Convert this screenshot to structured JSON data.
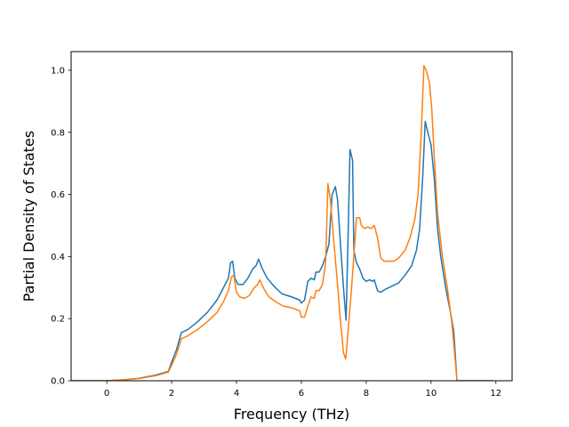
{
  "chart_data": {
    "type": "line",
    "title": "",
    "xlabel": "Frequency (THz)",
    "ylabel": "Partial Density of States",
    "xlim": [
      -1.1,
      12.5
    ],
    "ylim": [
      0.0,
      1.06
    ],
    "xticks": [
      0,
      2,
      4,
      6,
      8,
      10,
      12
    ],
    "xtick_labels": [
      "0",
      "2",
      "4",
      "6",
      "8",
      "10",
      "12"
    ],
    "yticks": [
      0.0,
      0.2,
      0.4,
      0.6,
      0.8,
      1.0
    ],
    "ytick_labels": [
      "0.0",
      "0.2",
      "0.4",
      "0.6",
      "0.8",
      "1.0"
    ],
    "grid": false,
    "legend": "none",
    "series": [
      {
        "color": "#1f77b4",
        "points": [
          [
            -1.1,
            0.0
          ],
          [
            0.0,
            0.0
          ],
          [
            0.5,
            0.003
          ],
          [
            1.0,
            0.008
          ],
          [
            1.5,
            0.018
          ],
          [
            1.9,
            0.03
          ],
          [
            2.0,
            0.06
          ],
          [
            2.15,
            0.1
          ],
          [
            2.3,
            0.155
          ],
          [
            2.5,
            0.165
          ],
          [
            2.8,
            0.19
          ],
          [
            3.1,
            0.22
          ],
          [
            3.4,
            0.26
          ],
          [
            3.6,
            0.3
          ],
          [
            3.75,
            0.33
          ],
          [
            3.82,
            0.38
          ],
          [
            3.88,
            0.385
          ],
          [
            3.95,
            0.33
          ],
          [
            4.05,
            0.31
          ],
          [
            4.2,
            0.31
          ],
          [
            4.35,
            0.33
          ],
          [
            4.5,
            0.36
          ],
          [
            4.6,
            0.37
          ],
          [
            4.68,
            0.392
          ],
          [
            4.8,
            0.36
          ],
          [
            4.95,
            0.33
          ],
          [
            5.15,
            0.305
          ],
          [
            5.4,
            0.28
          ],
          [
            5.7,
            0.27
          ],
          [
            5.95,
            0.26
          ],
          [
            6.0,
            0.25
          ],
          [
            6.1,
            0.26
          ],
          [
            6.2,
            0.32
          ],
          [
            6.3,
            0.33
          ],
          [
            6.4,
            0.325
          ],
          [
            6.45,
            0.35
          ],
          [
            6.55,
            0.35
          ],
          [
            6.65,
            0.37
          ],
          [
            6.75,
            0.4
          ],
          [
            6.85,
            0.44
          ],
          [
            6.95,
            0.6
          ],
          [
            7.05,
            0.625
          ],
          [
            7.12,
            0.58
          ],
          [
            7.2,
            0.45
          ],
          [
            7.3,
            0.3
          ],
          [
            7.38,
            0.195
          ],
          [
            7.45,
            0.5
          ],
          [
            7.5,
            0.745
          ],
          [
            7.58,
            0.71
          ],
          [
            7.62,
            0.42
          ],
          [
            7.7,
            0.38
          ],
          [
            7.8,
            0.36
          ],
          [
            7.9,
            0.33
          ],
          [
            8.0,
            0.32
          ],
          [
            8.1,
            0.325
          ],
          [
            8.2,
            0.32
          ],
          [
            8.25,
            0.325
          ],
          [
            8.35,
            0.29
          ],
          [
            8.45,
            0.285
          ],
          [
            8.6,
            0.295
          ],
          [
            8.8,
            0.305
          ],
          [
            9.0,
            0.315
          ],
          [
            9.2,
            0.34
          ],
          [
            9.4,
            0.37
          ],
          [
            9.55,
            0.42
          ],
          [
            9.65,
            0.49
          ],
          [
            9.75,
            0.67
          ],
          [
            9.82,
            0.835
          ],
          [
            9.9,
            0.8
          ],
          [
            10.0,
            0.76
          ],
          [
            10.1,
            0.65
          ],
          [
            10.2,
            0.49
          ],
          [
            10.3,
            0.4
          ],
          [
            10.45,
            0.3
          ],
          [
            10.6,
            0.22
          ],
          [
            10.7,
            0.16
          ],
          [
            10.8,
            0.0
          ],
          [
            11.9,
            0.0
          ]
        ]
      },
      {
        "color": "#ff7f0e",
        "points": [
          [
            -1.1,
            0.0
          ],
          [
            0.0,
            0.0
          ],
          [
            0.5,
            0.003
          ],
          [
            1.0,
            0.007
          ],
          [
            1.5,
            0.016
          ],
          [
            1.9,
            0.028
          ],
          [
            2.0,
            0.05
          ],
          [
            2.15,
            0.085
          ],
          [
            2.3,
            0.135
          ],
          [
            2.5,
            0.145
          ],
          [
            2.8,
            0.165
          ],
          [
            3.1,
            0.19
          ],
          [
            3.4,
            0.22
          ],
          [
            3.6,
            0.255
          ],
          [
            3.75,
            0.29
          ],
          [
            3.85,
            0.335
          ],
          [
            3.92,
            0.34
          ],
          [
            4.0,
            0.285
          ],
          [
            4.1,
            0.27
          ],
          [
            4.25,
            0.265
          ],
          [
            4.4,
            0.275
          ],
          [
            4.55,
            0.3
          ],
          [
            4.65,
            0.31
          ],
          [
            4.72,
            0.325
          ],
          [
            4.85,
            0.295
          ],
          [
            5.0,
            0.27
          ],
          [
            5.2,
            0.255
          ],
          [
            5.45,
            0.24
          ],
          [
            5.7,
            0.235
          ],
          [
            5.95,
            0.225
          ],
          [
            6.0,
            0.205
          ],
          [
            6.1,
            0.205
          ],
          [
            6.2,
            0.24
          ],
          [
            6.3,
            0.27
          ],
          [
            6.4,
            0.265
          ],
          [
            6.45,
            0.29
          ],
          [
            6.55,
            0.29
          ],
          [
            6.65,
            0.31
          ],
          [
            6.75,
            0.38
          ],
          [
            6.82,
            0.635
          ],
          [
            6.9,
            0.58
          ],
          [
            7.0,
            0.45
          ],
          [
            7.1,
            0.33
          ],
          [
            7.2,
            0.2
          ],
          [
            7.3,
            0.09
          ],
          [
            7.37,
            0.07
          ],
          [
            7.45,
            0.17
          ],
          [
            7.55,
            0.3
          ],
          [
            7.65,
            0.45
          ],
          [
            7.7,
            0.525
          ],
          [
            7.8,
            0.525
          ],
          [
            7.85,
            0.5
          ],
          [
            7.95,
            0.49
          ],
          [
            8.05,
            0.495
          ],
          [
            8.15,
            0.49
          ],
          [
            8.25,
            0.5
          ],
          [
            8.35,
            0.46
          ],
          [
            8.45,
            0.395
          ],
          [
            8.55,
            0.385
          ],
          [
            8.7,
            0.385
          ],
          [
            8.85,
            0.385
          ],
          [
            9.0,
            0.395
          ],
          [
            9.2,
            0.42
          ],
          [
            9.35,
            0.46
          ],
          [
            9.5,
            0.52
          ],
          [
            9.6,
            0.6
          ],
          [
            9.7,
            0.8
          ],
          [
            9.78,
            1.015
          ],
          [
            9.85,
            1.0
          ],
          [
            9.95,
            0.96
          ],
          [
            10.02,
            0.88
          ],
          [
            10.1,
            0.72
          ],
          [
            10.2,
            0.54
          ],
          [
            10.35,
            0.4
          ],
          [
            10.5,
            0.3
          ],
          [
            10.65,
            0.18
          ],
          [
            10.8,
            0.0
          ],
          [
            11.9,
            0.0
          ]
        ]
      }
    ]
  }
}
